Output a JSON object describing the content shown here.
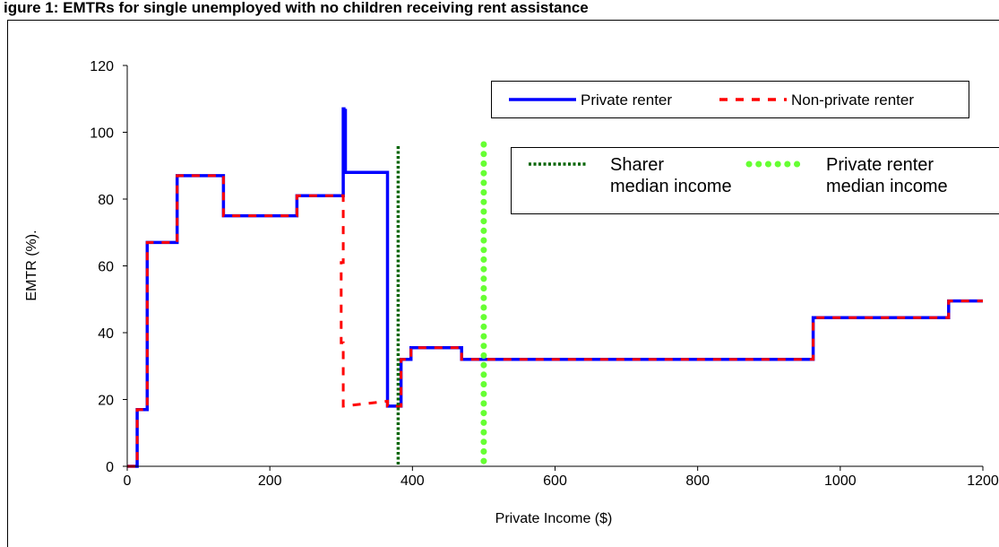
{
  "figure": {
    "title": "igure 1: EMTRs for single unemployed with no children receiving rent assistance"
  },
  "chart_data": {
    "type": "line",
    "title": "",
    "xlabel": "Private Income ($)",
    "ylabel": "EMTR (%).",
    "xlim": [
      0,
      1200
    ],
    "ylim": [
      0,
      120
    ],
    "xticks": [
      0,
      200,
      400,
      600,
      800,
      1000,
      1200
    ],
    "yticks": [
      0,
      20,
      40,
      60,
      80,
      100,
      120
    ],
    "grid": false,
    "series": [
      {
        "name": "Private renter",
        "color": "#0000ff",
        "style": "solid",
        "x": [
          0,
          14,
          14,
          28,
          28,
          70,
          70,
          135,
          135,
          238,
          238,
          303,
          303,
          304,
          304,
          306,
          306,
          365,
          365,
          384,
          384,
          398,
          398,
          469,
          469,
          962,
          962,
          1152,
          1152,
          1200
        ],
        "y": [
          0,
          0,
          17,
          17,
          67,
          67,
          87,
          87,
          75,
          75,
          81,
          81,
          107,
          107,
          88,
          107,
          88,
          88,
          18,
          18,
          32,
          32,
          35.5,
          35.5,
          32,
          32,
          44.5,
          44.5,
          49.5,
          49.5
        ]
      },
      {
        "name": "Non-private renter",
        "color": "#ff0000",
        "style": "dashed",
        "x": [
          0,
          14,
          14,
          28,
          28,
          70,
          70,
          135,
          135,
          238,
          238,
          303,
          303,
          300,
          300,
          303,
          303,
          365,
          365,
          384,
          384,
          398,
          398,
          469,
          469,
          962,
          962,
          1152,
          1152,
          1200
        ],
        "y": [
          0,
          0,
          17,
          17,
          67,
          67,
          87,
          87,
          75,
          75,
          81,
          81,
          61,
          61,
          37,
          37,
          18,
          19.5,
          18,
          18,
          32,
          32,
          35.5,
          35.5,
          32,
          32,
          44.5,
          44.5,
          49.5,
          49.5
        ]
      }
    ],
    "vlines": [
      {
        "name": "Sharer median income",
        "x": 380,
        "color": "#006400",
        "style": "dotted"
      },
      {
        "name": "Private renter median income",
        "x": 500,
        "color": "#66ff33",
        "style": "dots"
      }
    ],
    "legend1": {
      "items": [
        "Private renter",
        "Non-private renter"
      ],
      "placement": "top-right"
    },
    "legend2": {
      "sharer_line1": "Sharer",
      "sharer_line2": "median income",
      "renter_line1": "Private renter",
      "renter_line2": "median income",
      "placement": "upper-right"
    }
  }
}
